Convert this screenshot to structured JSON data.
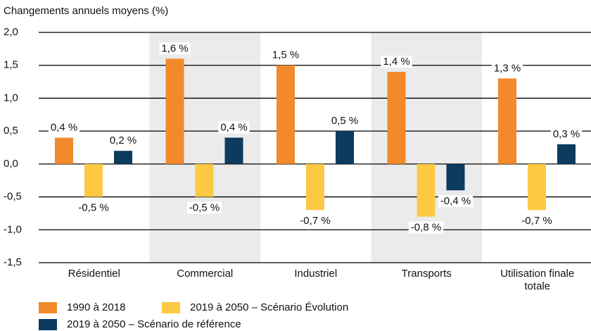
{
  "chart_data": {
    "type": "bar",
    "y_axis_label": "Changements annuels moyens (%)",
    "categories": [
      "Résidentiel",
      "Commercial",
      "Industriel",
      "Transports",
      "Utilisation finale totale"
    ],
    "series": [
      {
        "name": "1990 à 2018",
        "color": "#f28a2b",
        "values": [
          0.4,
          1.6,
          1.5,
          1.4,
          1.3
        ],
        "value_labels": [
          "0,4 %",
          "1,6 %",
          "1,5 %",
          "1,4 %",
          "1,3 %"
        ]
      },
      {
        "name": "2019 à 2050 – Scénario Évolution",
        "color": "#fdc943",
        "values": [
          -0.5,
          -0.5,
          -0.7,
          -0.8,
          -0.7
        ],
        "value_labels": [
          "-0,5 %",
          "-0,5 %",
          "-0,7 %",
          "-0,8 %",
          "-0,7 %"
        ]
      },
      {
        "name": "2019 à 2050 – Scénario de référence",
        "color": "#0c3b5e",
        "values": [
          0.2,
          0.4,
          0.5,
          -0.4,
          0.3
        ],
        "value_labels": [
          "0,2 %",
          "0,4 %",
          "0,5 %",
          "-0,4 %",
          "0,3 %"
        ]
      }
    ],
    "ylim": [
      -1.5,
      2.0
    ],
    "yticks": [
      {
        "value": -1.5,
        "label": "-1,5"
      },
      {
        "value": -1.0,
        "label": "-1,0"
      },
      {
        "value": -0.5,
        "label": "-0,5"
      },
      {
        "value": 0,
        "label": "0,0"
      },
      {
        "value": 0.5,
        "label": "0,5"
      },
      {
        "value": 1.0,
        "label": "1,0"
      },
      {
        "value": 1.5,
        "label": "1,5"
      },
      {
        "value": 2.0,
        "label": "2,0"
      }
    ],
    "grid": true
  }
}
